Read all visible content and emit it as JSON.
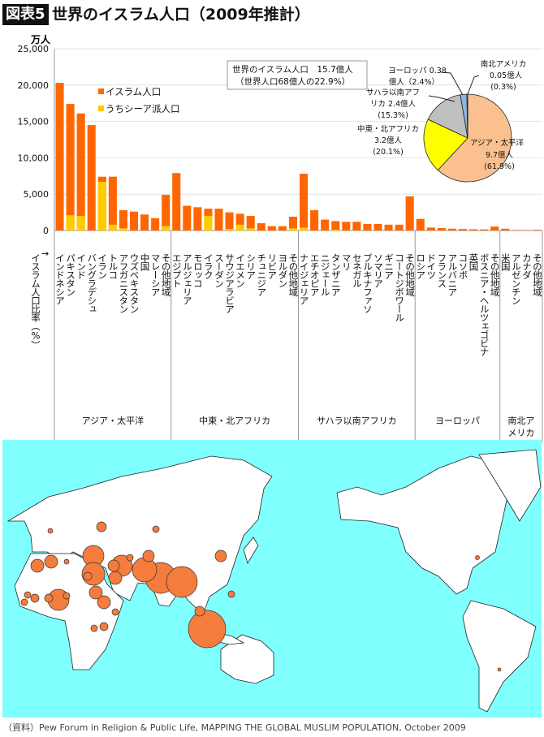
{
  "title_badge": "図表5",
  "title": "世界のイスラム人口（2009年推計）",
  "chart_data": {
    "type": "bar",
    "stacked_overlay": true,
    "yunit": "万人",
    "ylim": [
      0,
      25000
    ],
    "yticks": [
      "0",
      "5,000",
      "10,000",
      "15,000",
      "20,000",
      "25,000"
    ],
    "grid": true,
    "legend_position": "top-left",
    "categories": [
      "インドネシア",
      "パキスタン",
      "インド",
      "バングラデシュ",
      "イラン",
      "トルコ",
      "アフガニスタン",
      "ウズベキスタン",
      "中国",
      "マレーシア",
      "その他地域",
      "エジプト",
      "アルジェリア",
      "モロッコ",
      "イラク",
      "スーダン",
      "サウジアラビア",
      "イエメン",
      "シリア",
      "チュニジア",
      "リビア",
      "ヨルダン",
      "その他地域",
      "ナイジェリア",
      "エチオピア",
      "ニジェール",
      "タンザニア",
      "マリ",
      "セネガル",
      "ブルキナファソ",
      "ソマリア",
      "ギニア",
      "コートジボワール",
      "その他地域",
      "ロシア",
      "ドイツ",
      "フランス",
      "アルバニア",
      "コソボ",
      "英国",
      "ボスニア・ヘルツェゴビナ",
      "その他地域",
      "米国",
      "アルゼンチン",
      "カナダ",
      "その他地域"
    ],
    "series": [
      {
        "name": "イスラム人口",
        "color": "#ff6600",
        "values": [
          20300,
          17400,
          16100,
          14500,
          7400,
          7400,
          2800,
          2600,
          2200,
          1700,
          4900,
          7900,
          3400,
          3200,
          3000,
          3000,
          2500,
          2300,
          2000,
          1000,
          600,
          600,
          1900,
          7800,
          2800,
          1500,
          1300,
          1200,
          1200,
          900,
          900,
          800,
          800,
          4700,
          1600,
          405,
          350,
          253,
          210,
          165,
          152,
          550,
          245,
          78,
          66,
          100
        ]
      },
      {
        "name": "うちシーア派人口",
        "color": "#ffcc00",
        "values": [
          0,
          2100,
          2000,
          0,
          6700,
          800,
          300,
          0,
          0,
          0,
          600,
          0,
          0,
          0,
          2000,
          0,
          200,
          800,
          300,
          0,
          0,
          0,
          300,
          400,
          0,
          0,
          100,
          0,
          0,
          0,
          0,
          0,
          0,
          0,
          0,
          0,
          0,
          0,
          0,
          0,
          0,
          0,
          0,
          0,
          0,
          0
        ]
      }
    ],
    "groups": [
      {
        "label": "アジア・太平洋",
        "count": 11
      },
      {
        "label": "中東・北アフリカ",
        "count": 12
      },
      {
        "label": "サハラ以南アフリカ",
        "count": 11
      },
      {
        "label": "ヨーロッパ",
        "count": 8
      },
      {
        "label": "南北アメリカ",
        "count": 4
      }
    ],
    "x_axis_label": "イスラム人口比率（%）",
    "x_axis_arrow": "→"
  },
  "summary_box": {
    "line1": "世界のイスラム人口　15.7億人",
    "line2": "（世界人口68億人の22.9%）"
  },
  "pie": {
    "type": "pie",
    "slices": [
      {
        "label": "アジア・太平洋",
        "value_text": "9.7億人",
        "pct_text": "(61.9%)",
        "pct": 61.9,
        "color": "#fac090"
      },
      {
        "label": "中東・北アフリカ",
        "value_text": "3.2億人",
        "pct_text": "(20.1%)",
        "pct": 20.1,
        "color": "#ffff00"
      },
      {
        "label": "サハラ以南アフ",
        "label2": "リカ 2.4億人",
        "pct_text": "(15.3%)",
        "pct": 15.3,
        "color": "#bfbfbf"
      },
      {
        "label": "ヨーロッパ 0.38",
        "label2": "億人（2.4%）",
        "pct": 2.4,
        "color": "#8db4e2"
      },
      {
        "label": "南北アメリカ",
        "value_text": "0.05億人",
        "pct_text": "(0.3%)",
        "pct": 0.3,
        "color": "#ffffff"
      }
    ]
  },
  "map": {
    "ocean_color": "#80ffff",
    "land_color": "#ffffff",
    "bubble_color": "#f47c3c"
  },
  "footer": "（資料）Pew Forum in Religion & Public Life, MAPPING THE GLOBAL MUSLIM POPULATION, October 2009"
}
